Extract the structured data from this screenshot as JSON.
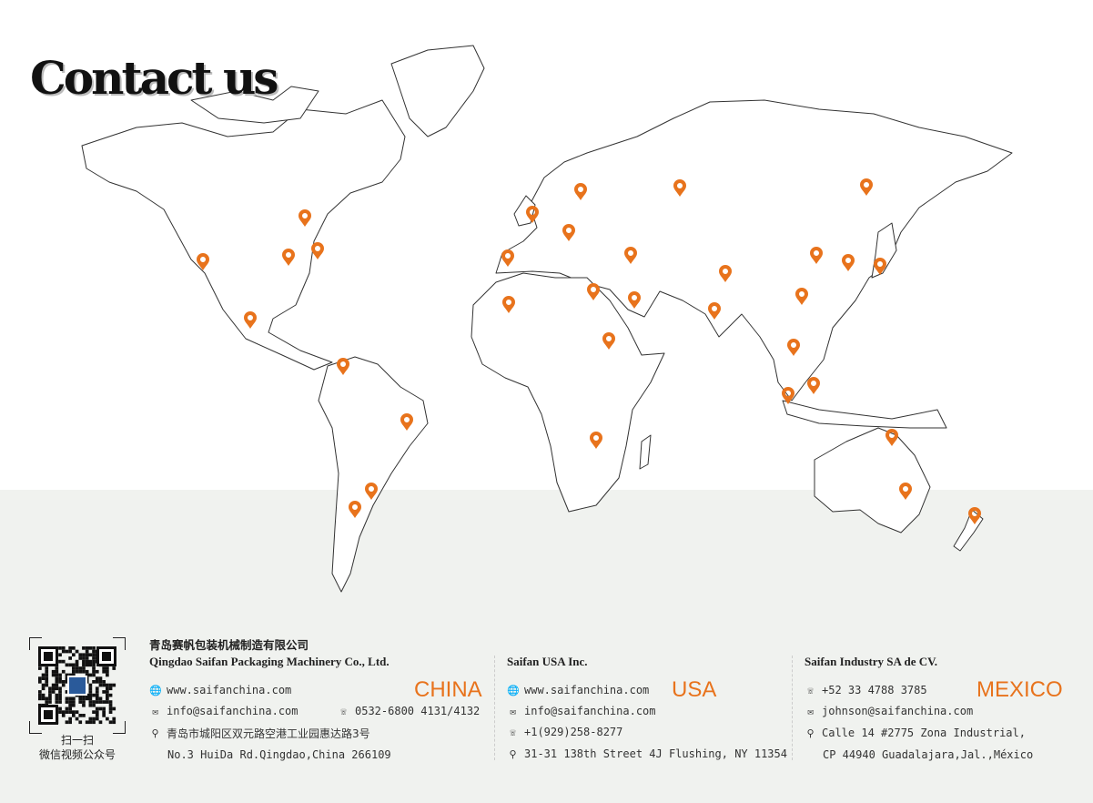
{
  "title": "Contact us",
  "accent_color": "#e8731c",
  "map": {
    "pin_icon": "map-pin-icon",
    "pin_color": "#e8731c",
    "pin_count": 33
  },
  "qr": {
    "label_1": "扫一扫",
    "label_2": "微信视频公众号"
  },
  "china": {
    "name_cn": "青岛赛帆包装机械制造有限公司",
    "name_en": "Qingdao Saifan Packaging Machinery Co., Ltd.",
    "country": "CHINA",
    "website": "www.saifanchina.com",
    "email": "info@saifanchina.com",
    "phone": "0532-6800 4131/4132",
    "address_cn": "青岛市城阳区双元路空港工业园惠达路3号",
    "address_en": "No.3 HuiDa Rd.Qingdao,China 266109"
  },
  "usa": {
    "name": "Saifan USA  Inc.",
    "country": "USA",
    "website": "www.saifanchina.com",
    "email": "info@saifanchina.com",
    "phone": "+1(929)258-8277",
    "address": "31-31 138th Street 4J Flushing, NY 11354"
  },
  "mexico": {
    "name": "Saifan Industry SA de CV.",
    "country": "MEXICO",
    "phone": "+52 33 4788 3785",
    "email": "johnson@saifanchina.com",
    "address_1": "Calle 14 #2775 Zona Industrial,",
    "address_2": "CP 44940 Guadalajara,Jal.,México"
  }
}
